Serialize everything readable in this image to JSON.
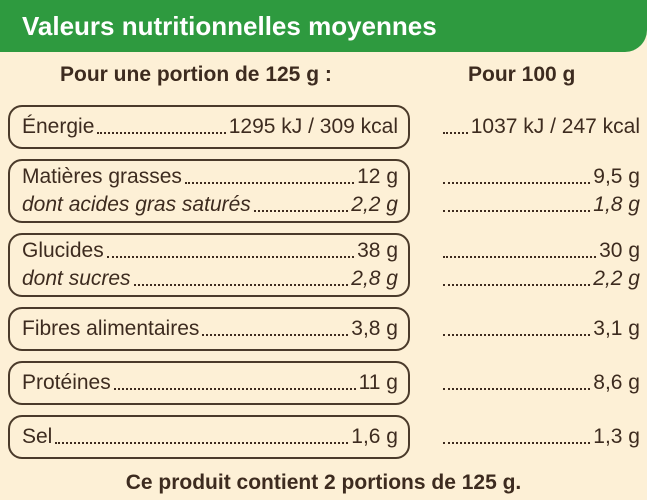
{
  "header": {
    "title": "Valeurs nutritionnelles moyennes"
  },
  "columns": [
    "Pour une portion de 125 g :",
    "Pour 100 g"
  ],
  "groups": [
    {
      "rows": [
        {
          "label": "Énergie",
          "portion": "1295 kJ / 309 kcal",
          "per100": "1037 kJ / 247 kcal"
        }
      ]
    },
    {
      "rows": [
        {
          "label": "Matières grasses",
          "portion": "12 g",
          "per100": "9,5 g"
        },
        {
          "label": "dont acides gras saturés",
          "portion": "2,2 g",
          "per100": "1,8 g",
          "italic": true
        }
      ]
    },
    {
      "rows": [
        {
          "label": "Glucides",
          "portion": "38 g",
          "per100": "30 g"
        },
        {
          "label": "dont sucres",
          "portion": "2,8 g",
          "per100": "2,2 g",
          "italic": true
        }
      ]
    },
    {
      "rows": [
        {
          "label": "Fibres alimentaires",
          "portion": "3,8 g",
          "per100": "3,1 g"
        }
      ]
    },
    {
      "rows": [
        {
          "label": "Protéines",
          "portion": "11 g",
          "per100": "8,6 g"
        }
      ]
    },
    {
      "rows": [
        {
          "label": "Sel",
          "portion": "1,6 g",
          "per100": "1,3 g"
        }
      ]
    }
  ],
  "footer": "Ce produit contient 2 portions de 125 g."
}
